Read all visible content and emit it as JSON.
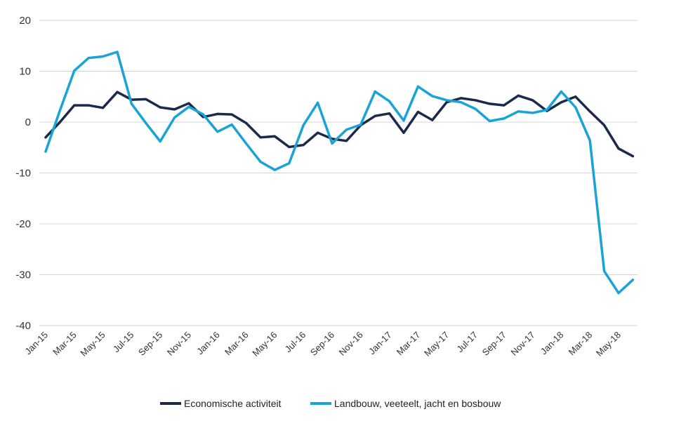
{
  "chart_data": {
    "type": "line",
    "title": "",
    "xlabel": "",
    "ylabel": "",
    "ylim": [
      -40,
      20
    ],
    "yticks": [
      "20",
      "10",
      "0",
      "-10",
      "-20",
      "-30",
      "-40"
    ],
    "grid": true,
    "legend_position": "bottom",
    "x": [
      "Jan-15",
      "Feb-15",
      "Mar-15",
      "Apr-15",
      "May-15",
      "Jun-15",
      "Jul-15",
      "Aug-15",
      "Sep-15",
      "Oct-15",
      "Nov-15",
      "Dec-15",
      "Jan-16",
      "Feb-16",
      "Mar-16",
      "Apr-16",
      "May-16",
      "Jun-16",
      "Jul-16",
      "Aug-16",
      "Sep-16",
      "Oct-16",
      "Nov-16",
      "Dec-16",
      "Jan-17",
      "Feb-17",
      "Mar-17",
      "Apr-17",
      "May-17",
      "Jun-17",
      "Jul-17",
      "Aug-17",
      "Sep-17",
      "Oct-17",
      "Nov-17",
      "Dec-17",
      "Jan-18",
      "Feb-18",
      "Mar-18",
      "Apr-18",
      "May-18",
      "Jun-18"
    ],
    "xtick_labels": [
      "Jan-15",
      "Mar-15",
      "May-15",
      "Jul-15",
      "Sep-15",
      "Nov-15",
      "Jan-16",
      "Mar-16",
      "May-16",
      "Jul-16",
      "Sep-16",
      "Nov-16",
      "Jan-17",
      "Mar-17",
      "May-17",
      "Jul-17",
      "Sep-17",
      "Nov-17",
      "Jan-18",
      "Mar-18",
      "May-18"
    ],
    "series": [
      {
        "name": "Economische activiteit",
        "color": "#1b2a4a",
        "values": [
          -3.0,
          0.0,
          3.3,
          3.3,
          2.8,
          5.9,
          4.4,
          4.5,
          2.9,
          2.5,
          3.7,
          1.0,
          1.6,
          1.5,
          -0.2,
          -3.0,
          -2.8,
          -4.9,
          -4.5,
          -2.1,
          -3.3,
          -3.7,
          -0.6,
          1.2,
          1.7,
          -2.1,
          2.0,
          0.4,
          3.9,
          4.7,
          4.3,
          3.6,
          3.3,
          5.2,
          4.3,
          2.2,
          3.9,
          5.0,
          2.1,
          -0.6,
          -5.2,
          -6.7
        ]
      },
      {
        "name": "Landbouw, veeteelt, jacht en bosbouw",
        "color": "#1aa3d6",
        "values": [
          -5.8,
          2.3,
          10.1,
          12.6,
          12.9,
          13.8,
          3.6,
          -0.2,
          -3.8,
          0.9,
          3.0,
          1.5,
          -1.9,
          -0.5,
          -4.2,
          -7.8,
          -9.4,
          -8.1,
          -0.6,
          3.8,
          -4.2,
          -1.5,
          -0.5,
          6.0,
          4.1,
          0.3,
          7.0,
          5.1,
          4.3,
          3.9,
          2.6,
          0.2,
          0.7,
          2.1,
          1.8,
          2.4,
          6.0,
          2.9,
          -3.6,
          -29.3,
          -33.6,
          -31.0
        ]
      }
    ]
  }
}
